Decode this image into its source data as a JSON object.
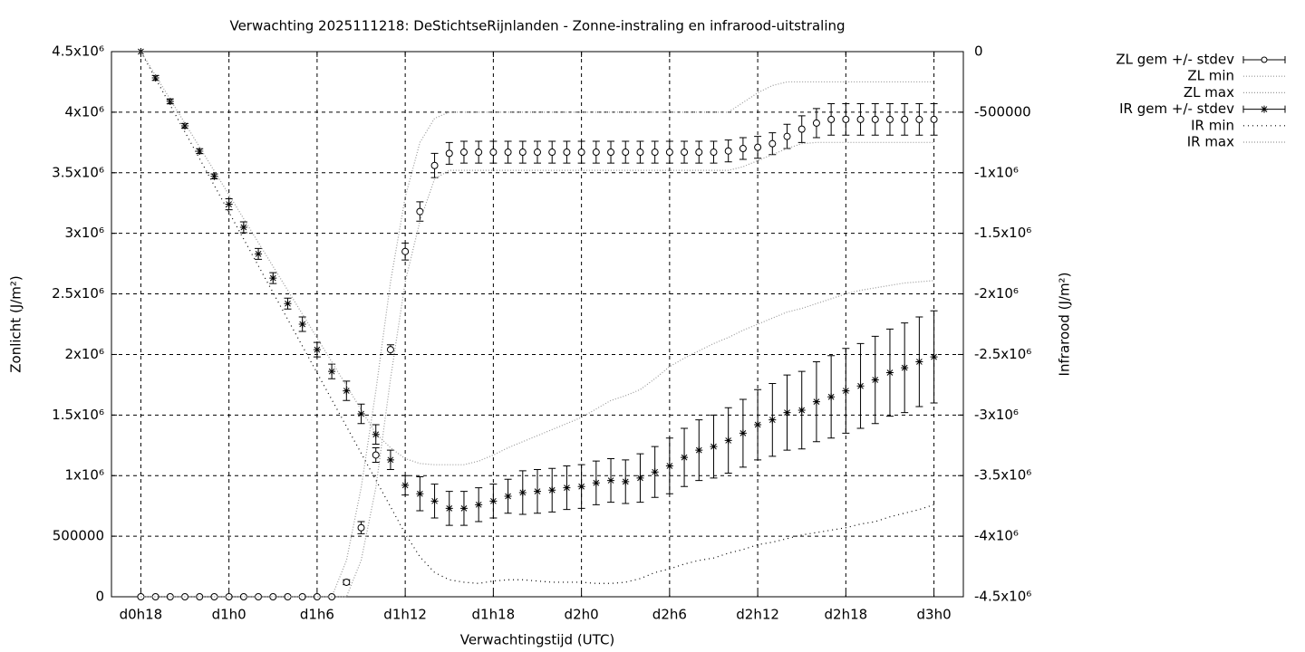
{
  "chart_data": {
    "type": "errorbar-line",
    "title": "Verwachting 2025111218: DeStichtseRijnlanden - Zonne-instraling en infrarood-uitstraling",
    "xlabel": "Verwachtingstijd (UTC)",
    "ylabel": "Zonlicht (J/m²)",
    "y2label": "Infrarood (J/m²)",
    "x": [
      0,
      1,
      2,
      3,
      4,
      5,
      6,
      7,
      8,
      9,
      10,
      11,
      12,
      13,
      14,
      15,
      16,
      17,
      18,
      19,
      20,
      21,
      22,
      23,
      24,
      25,
      26,
      27,
      28,
      29,
      30,
      31,
      32,
      33,
      34,
      35,
      36,
      37,
      38,
      39,
      40,
      41,
      42,
      43,
      44,
      45,
      46,
      47,
      48,
      49,
      50,
      51,
      52,
      53,
      54
    ],
    "xlim": [
      -2,
      56
    ],
    "xticks": [
      {
        "value": 0,
        "label": "d0h18"
      },
      {
        "value": 6,
        "label": "d1h0"
      },
      {
        "value": 12,
        "label": "d1h6"
      },
      {
        "value": 18,
        "label": "d1h12"
      },
      {
        "value": 24,
        "label": "d1h18"
      },
      {
        "value": 30,
        "label": "d2h0"
      },
      {
        "value": 36,
        "label": "d2h6"
      },
      {
        "value": 42,
        "label": "d2h12"
      },
      {
        "value": 48,
        "label": "d2h18"
      },
      {
        "value": 54,
        "label": "d3h0"
      }
    ],
    "ylim": [
      0,
      4500000
    ],
    "yticks": [
      0,
      500000,
      {
        "value": 1000000,
        "label": "1x10⁶"
      },
      {
        "value": 1500000,
        "label": "1.5x10⁶"
      },
      {
        "value": 2000000,
        "label": "2x10⁶"
      },
      {
        "value": 2500000,
        "label": "2.5x10⁶"
      },
      {
        "value": 3000000,
        "label": "3x10⁶"
      },
      {
        "value": 3500000,
        "label": "3.5x10⁶"
      },
      {
        "value": 4000000,
        "label": "4x10⁶"
      },
      {
        "value": 4500000,
        "label": "4.5x10⁶"
      }
    ],
    "y2lim": [
      -4500000,
      0
    ],
    "y2ticks": [
      {
        "value": -4500000,
        "label": "-4.5x10⁶"
      },
      {
        "value": -4000000,
        "label": "-4x10⁶"
      },
      {
        "value": -3500000,
        "label": "-3.5x10⁶"
      },
      {
        "value": -3000000,
        "label": "-3x10⁶"
      },
      {
        "value": -2500000,
        "label": "-2.5x10⁶"
      },
      {
        "value": -2000000,
        "label": "-2x10⁶"
      },
      {
        "value": -1500000,
        "label": "-1.5x10⁶"
      },
      {
        "value": -1000000,
        "label": "-1x10⁶"
      },
      -500000,
      0
    ],
    "grid": true,
    "legend": "outside-right",
    "series": [
      {
        "name": "ZL gem +/- stdev",
        "color": "#000000",
        "marker": "circle",
        "values": [
          0,
          0,
          0,
          0,
          0,
          0,
          0,
          0,
          0,
          0,
          0,
          0,
          0,
          0,
          120000,
          570000,
          1170000,
          2040000,
          2850000,
          3180000,
          3560000,
          3660000,
          3670000,
          3670000,
          3670000,
          3670000,
          3670000,
          3670000,
          3670000,
          3670000,
          3670000,
          3670000,
          3670000,
          3670000,
          3670000,
          3670000,
          3670000,
          3670000,
          3670000,
          3670000,
          3680000,
          3700000,
          3710000,
          3740000,
          3800000,
          3860000,
          3910000,
          3940000,
          3940000,
          3940000,
          3940000,
          3940000,
          3940000,
          3940000,
          3940000
        ],
        "errors": [
          0,
          0,
          0,
          0,
          0,
          0,
          0,
          0,
          0,
          0,
          0,
          0,
          0,
          0,
          20000,
          50000,
          60000,
          40000,
          70000,
          80000,
          100000,
          90000,
          90000,
          90000,
          90000,
          90000,
          90000,
          90000,
          90000,
          90000,
          90000,
          90000,
          90000,
          90000,
          90000,
          90000,
          90000,
          90000,
          90000,
          90000,
          90000,
          90000,
          90000,
          90000,
          100000,
          110000,
          120000,
          130000,
          130000,
          130000,
          130000,
          130000,
          130000,
          130000,
          130000
        ]
      },
      {
        "name": "ZL min",
        "color": "#999999",
        "dash": "1 2",
        "values": [
          0,
          0,
          0,
          0,
          0,
          0,
          0,
          0,
          0,
          0,
          0,
          0,
          0,
          0,
          0,
          300000,
          900000,
          1800000,
          2600000,
          3100000,
          3450000,
          3520000,
          3520000,
          3520000,
          3520000,
          3520000,
          3520000,
          3520000,
          3520000,
          3520000,
          3520000,
          3520000,
          3520000,
          3520000,
          3520000,
          3520000,
          3520000,
          3520000,
          3520000,
          3520000,
          3520000,
          3550000,
          3600000,
          3650000,
          3700000,
          3740000,
          3750000,
          3750000,
          3750000,
          3750000,
          3750000,
          3750000,
          3750000,
          3750000,
          3750000
        ]
      },
      {
        "name": "ZL max",
        "color": "#999999",
        "dash": "1 2",
        "values": [
          0,
          0,
          0,
          0,
          0,
          0,
          0,
          0,
          0,
          0,
          0,
          0,
          0,
          0,
          300000,
          900000,
          1700000,
          2600000,
          3300000,
          3750000,
          3950000,
          4000000,
          4000000,
          4000000,
          4000000,
          4000000,
          4000000,
          4000000,
          4000000,
          4000000,
          4000000,
          4000000,
          4000000,
          4000000,
          4000000,
          4000000,
          4000000,
          4000000,
          4000000,
          4000000,
          4000000,
          4080000,
          4160000,
          4220000,
          4250000,
          4250000,
          4250000,
          4250000,
          4250000,
          4250000,
          4250000,
          4250000,
          4250000,
          4250000,
          4250000
        ]
      },
      {
        "name": "IR gem +/- stdev",
        "color": "#000000",
        "marker": "star",
        "axis": "y2",
        "values": [
          0,
          -217000,
          -411000,
          -613000,
          -822000,
          -1030000,
          -1260000,
          -1450000,
          -1670000,
          -1870000,
          -2080000,
          -2250000,
          -2460000,
          -2640000,
          -2800000,
          -2990000,
          -3160000,
          -3370000,
          -3580000,
          -3650000,
          -3710000,
          -3770000,
          -3770000,
          -3740000,
          -3710000,
          -3670000,
          -3640000,
          -3630000,
          -3620000,
          -3600000,
          -3590000,
          -3560000,
          -3540000,
          -3550000,
          -3520000,
          -3470000,
          -3420000,
          -3350000,
          -3290000,
          -3260000,
          -3210000,
          -3150000,
          -3080000,
          -3040000,
          -2980000,
          -2960000,
          -2890000,
          -2850000,
          -2800000,
          -2760000,
          -2710000,
          -2650000,
          -2610000,
          -2560000,
          -2520000
        ],
        "errors": [
          0,
          20000,
          20000,
          20000,
          20000,
          20000,
          45000,
          45000,
          45000,
          45000,
          45000,
          60000,
          60000,
          60000,
          80000,
          80000,
          80000,
          80000,
          80000,
          140000,
          140000,
          140000,
          140000,
          140000,
          140000,
          140000,
          180000,
          180000,
          180000,
          180000,
          180000,
          180000,
          180000,
          180000,
          200000,
          210000,
          230000,
          240000,
          250000,
          260000,
          270000,
          280000,
          290000,
          300000,
          310000,
          320000,
          330000,
          340000,
          350000,
          350000,
          360000,
          360000,
          370000,
          370000,
          380000
        ]
      },
      {
        "name": "IR min",
        "color": "#000000",
        "dash": "1 4",
        "axis": "y2",
        "values": [
          0,
          -221000,
          -442000,
          -663000,
          -884000,
          -1105000,
          -1326000,
          -1547000,
          -1768000,
          -1989000,
          -2210000,
          -2431000,
          -2652000,
          -2873000,
          -3094000,
          -3315000,
          -3536000,
          -3757000,
          -3980000,
          -4170000,
          -4300000,
          -4360000,
          -4380000,
          -4390000,
          -4370000,
          -4360000,
          -4360000,
          -4370000,
          -4380000,
          -4380000,
          -4380000,
          -4390000,
          -4390000,
          -4380000,
          -4350000,
          -4300000,
          -4270000,
          -4230000,
          -4200000,
          -4180000,
          -4140000,
          -4110000,
          -4070000,
          -4050000,
          -4020000,
          -3990000,
          -3970000,
          -3950000,
          -3930000,
          -3900000,
          -3880000,
          -3840000,
          -3810000,
          -3780000,
          -3740000
        ]
      },
      {
        "name": "IR max",
        "color": "#999999",
        "dash": "1 2",
        "axis": "y2",
        "values": [
          0,
          -197000,
          -394000,
          -591000,
          -788000,
          -985000,
          -1182000,
          -1379000,
          -1576000,
          -1773000,
          -1970000,
          -2167000,
          -2364000,
          -2561000,
          -2758000,
          -2955000,
          -3152000,
          -3270000,
          -3360000,
          -3400000,
          -3410000,
          -3410000,
          -3410000,
          -3380000,
          -3330000,
          -3270000,
          -3220000,
          -3170000,
          -3120000,
          -3070000,
          -3020000,
          -2950000,
          -2880000,
          -2840000,
          -2790000,
          -2700000,
          -2600000,
          -2530000,
          -2470000,
          -2410000,
          -2360000,
          -2300000,
          -2250000,
          -2200000,
          -2150000,
          -2120000,
          -2080000,
          -2040000,
          -2000000,
          -1970000,
          -1950000,
          -1930000,
          -1910000,
          -1900000,
          -1890000
        ]
      }
    ]
  }
}
